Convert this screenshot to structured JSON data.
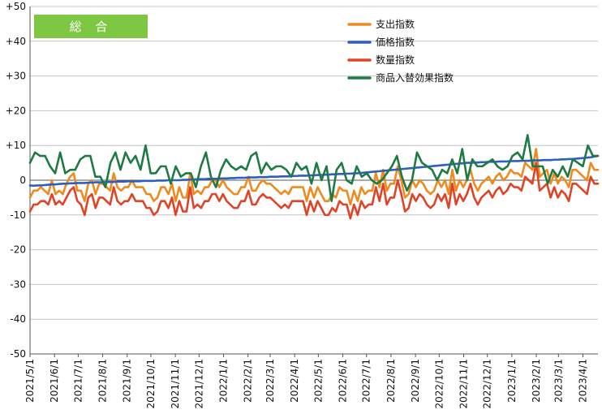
{
  "chart_data": {
    "type": "line",
    "badge": "総 合",
    "title": "",
    "xlabel": "",
    "ylabel": "",
    "ylim": [
      -50,
      50
    ],
    "y_ticks": [
      "+50",
      "+40",
      "+30",
      "+20",
      "+10",
      "0",
      "-10",
      "-20",
      "-30",
      "-40",
      "-50"
    ],
    "y_tick_values": [
      50,
      40,
      30,
      20,
      10,
      0,
      -10,
      -20,
      -30,
      -40,
      -50
    ],
    "x_tick_labels": [
      "2021/5/1",
      "2021/6/1",
      "2021/7/1",
      "2021/8/1",
      "2021/9/1",
      "2021/10/1",
      "2021/11/1",
      "2021/12/1",
      "2022/1/1",
      "2022/2/1",
      "2022/3/1",
      "2022/4/1",
      "2022/5/1",
      "2022/6/1",
      "2022/7/1",
      "2022/8/1",
      "2022/9/1",
      "2022/10/1",
      "2022/11/1",
      "2022/12/1",
      "2023/1/1",
      "2023/2/1",
      "2023/3/1",
      "2023/4/1"
    ],
    "grid": "horizontal",
    "legend_position": "top-right",
    "x_start": "2021-05-01",
    "x_end": "2023-04-20",
    "series": [
      {
        "name": "支出指数",
        "color": "#ED8B1E",
        "values": [
          -5,
          -3,
          -3,
          -2,
          -3,
          -4,
          0,
          -4,
          -3,
          -4,
          -1,
          1,
          2,
          -3,
          -3,
          -6,
          -1,
          0,
          -4,
          -1,
          -1,
          -2,
          -3,
          2,
          -2,
          -3,
          -2,
          -2,
          0,
          -2,
          -2,
          -2,
          -4,
          -4,
          -6,
          -5,
          -2,
          -2,
          -4,
          -1,
          -6,
          -2,
          -5,
          -5,
          2,
          -4,
          -3,
          -4,
          -2,
          -2,
          0,
          0,
          -2,
          0,
          -2,
          -3,
          -4,
          -4,
          -2,
          -2,
          1,
          -3,
          -3,
          -1,
          0,
          -1,
          -1,
          -2,
          -3,
          -4,
          -3,
          -4,
          -2,
          -2,
          -2,
          -2,
          -6,
          -2,
          -5,
          -2,
          -4,
          -6,
          -6,
          -4,
          -5,
          -2,
          -3,
          -3,
          -7,
          -3,
          -6,
          -2,
          -4,
          -3,
          -3,
          2,
          -2,
          3,
          -3,
          -1,
          -1,
          4,
          0,
          -5,
          -4,
          0,
          -2,
          0,
          -1,
          -3,
          -4,
          -3,
          0,
          -2,
          0,
          -4,
          3,
          -3,
          0,
          -2,
          0,
          3,
          -1,
          -3,
          -1,
          0,
          1,
          -1,
          1,
          2,
          0,
          1,
          3,
          2,
          2,
          1,
          5,
          4,
          3,
          9,
          1,
          2,
          3,
          -1,
          2,
          -1,
          1,
          0,
          -2,
          3,
          3,
          2,
          1,
          0,
          5,
          3,
          3
        ]
      },
      {
        "name": "価格指数",
        "color": "#2E5EBF",
        "values": [
          -1.5,
          -1.6,
          -1.5,
          -1.5,
          -1.4,
          -1.3,
          -1.2,
          -1.2,
          -1.1,
          -1.0,
          -1.0,
          -0.9,
          -0.9,
          -0.8,
          -0.8,
          -0.8,
          -0.7,
          -0.7,
          -0.6,
          -0.6,
          -0.6,
          -0.5,
          -0.5,
          -0.5,
          -0.4,
          -0.4,
          -0.4,
          -0.3,
          -0.3,
          -0.3,
          -0.3,
          -0.2,
          -0.2,
          -0.2,
          -0.2,
          -0.1,
          -0.1,
          -0.1,
          0.0,
          0.0,
          0.0,
          0.0,
          0.1,
          0.1,
          0.2,
          0.2,
          0.3,
          0.3,
          0.3,
          0.4,
          0.4,
          0.4,
          0.5,
          0.5,
          0.5,
          0.6,
          0.6,
          0.7,
          0.7,
          0.7,
          0.8,
          0.8,
          0.8,
          0.9,
          0.9,
          0.9,
          1.0,
          1.0,
          1.0,
          1.1,
          1.1,
          1.1,
          1.2,
          1.2,
          1.3,
          1.3,
          1.3,
          1.4,
          1.4,
          1.5,
          1.5,
          1.6,
          1.6,
          1.7,
          1.7,
          1.8,
          1.8,
          1.9,
          1.9,
          2.0,
          2.0,
          2.1,
          2.2,
          2.3,
          2.4,
          2.5,
          2.6,
          2.7,
          2.8,
          2.9,
          3.0,
          3.1,
          3.2,
          3.3,
          3.4,
          3.5,
          3.6,
          3.7,
          3.8,
          3.9,
          4.0,
          4.1,
          4.2,
          4.3,
          4.4,
          4.5,
          4.6,
          4.7,
          4.8,
          4.9,
          5.0,
          5.0,
          5.1,
          5.1,
          5.2,
          5.2,
          5.3,
          5.3,
          5.3,
          5.4,
          5.4,
          5.4,
          5.5,
          5.5,
          5.5,
          5.6,
          5.6,
          5.6,
          5.7,
          5.7,
          5.7,
          5.8,
          5.8,
          5.8,
          5.9,
          5.9,
          6.0,
          6.0,
          6.1,
          6.1,
          6.2,
          6.3,
          6.4,
          6.5,
          6.6,
          6.8,
          7.0
        ]
      },
      {
        "name": "数量指数",
        "color": "#E04326",
        "values": [
          -9,
          -7,
          -7,
          -6,
          -6,
          -7,
          -4,
          -7,
          -6,
          -7,
          -5,
          -3,
          -2,
          -6,
          -7,
          -10,
          -5,
          -4,
          -8,
          -5,
          -5,
          -6,
          -7,
          -2,
          -6,
          -7,
          -6,
          -6,
          -4,
          -6,
          -6,
          -6,
          -8,
          -8,
          -10,
          -9,
          -6,
          -6,
          -8,
          -5,
          -10,
          -6,
          -9,
          -9,
          -2,
          -8,
          -7,
          -8,
          -6,
          -6,
          -4,
          -4,
          -6,
          -4,
          -6,
          -7,
          -8,
          -8,
          -6,
          -6,
          -3,
          -7,
          -7,
          -5,
          -4,
          -5,
          -5,
          -6,
          -7,
          -8,
          -7,
          -8,
          -6,
          -6,
          -6,
          -6,
          -10,
          -6,
          -9,
          -6,
          -8,
          -10,
          -10,
          -8,
          -9,
          -6,
          -7,
          -7,
          -11,
          -7,
          -10,
          -6,
          -8,
          -7,
          -7,
          -2,
          -6,
          -1,
          -7,
          -5,
          -5,
          0,
          -4,
          -9,
          -8,
          -4,
          -6,
          -4,
          -5,
          -7,
          -8,
          -7,
          -4,
          -6,
          -4,
          -8,
          -1,
          -7,
          -4,
          -6,
          -4,
          -1,
          -5,
          -7,
          -5,
          -4,
          -3,
          -5,
          -3,
          -2,
          -4,
          -3,
          -1,
          -2,
          -2,
          -3,
          1,
          0,
          -1,
          5,
          -3,
          -2,
          -1,
          -5,
          -2,
          -5,
          -3,
          -4,
          -6,
          -1,
          -1,
          -2,
          -3,
          -4,
          1,
          -1,
          -1
        ]
      },
      {
        "name": "商品入替効果指数",
        "color": "#1F7A43",
        "values": [
          5,
          8,
          7,
          7,
          4,
          2,
          8,
          2,
          3,
          3,
          6,
          7,
          7,
          1,
          1,
          -2,
          5,
          8,
          3,
          8,
          5,
          7,
          3,
          10,
          2,
          2,
          4,
          4,
          -1,
          4,
          1,
          2,
          2,
          -2,
          4,
          8,
          1,
          -2,
          3,
          6,
          4,
          3,
          4,
          3,
          7,
          8,
          2,
          5,
          3,
          4,
          4,
          3,
          1,
          5,
          3,
          4,
          -1,
          5,
          0,
          4,
          -6,
          3,
          5,
          0,
          -1,
          4,
          1,
          2,
          0,
          -1,
          0,
          2,
          4,
          7,
          1,
          -3,
          0,
          8,
          5,
          4,
          3,
          0,
          3,
          2,
          6,
          2,
          9,
          0,
          6,
          4,
          4,
          5,
          6,
          4,
          3,
          4,
          7,
          8,
          6,
          13,
          4,
          4,
          4,
          -1,
          3,
          1,
          4,
          1,
          6,
          5,
          4,
          10,
          7,
          7
        ]
      }
    ]
  }
}
